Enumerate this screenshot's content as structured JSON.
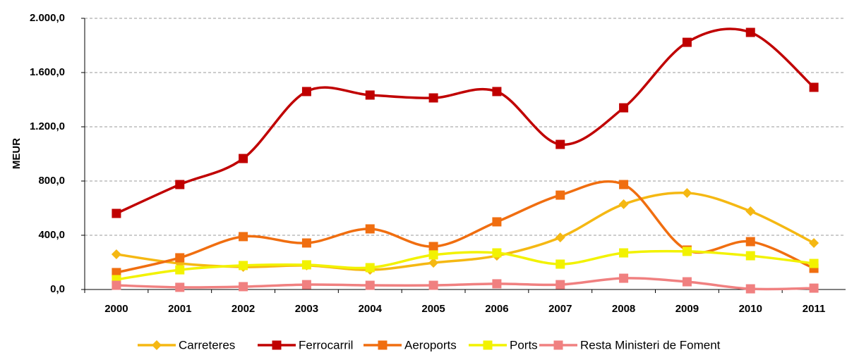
{
  "chart_data": {
    "type": "line",
    "y_label": "MEUR",
    "categories": [
      "2000",
      "2001",
      "2002",
      "2003",
      "2004",
      "2005",
      "2006",
      "2007",
      "2008",
      "2009",
      "2010",
      "2011"
    ],
    "series": [
      {
        "name": "Carreteres",
        "color": "#f5b813",
        "marker": "diamond",
        "values": [
          260,
          192,
          166,
          177,
          145,
          197,
          249,
          384,
          629,
          712,
          577,
          343
        ]
      },
      {
        "name": "Ferrocarril",
        "color": "#c00000",
        "marker": "square",
        "values": [
          561,
          774,
          966,
          1460,
          1434,
          1413,
          1460,
          1070,
          1340,
          1823,
          1896,
          1491
        ]
      },
      {
        "name": "Aeroports",
        "color": "#f06e10",
        "marker": "square",
        "values": [
          125,
          234,
          390,
          343,
          447,
          317,
          499,
          696,
          774,
          291,
          353,
          156
        ]
      },
      {
        "name": "Ports",
        "color": "#f2f200",
        "marker": "square",
        "values": [
          73,
          145,
          177,
          182,
          161,
          255,
          270,
          187,
          270,
          281,
          249,
          192
        ]
      },
      {
        "name": "Resta Ministeri de Foment",
        "color": "#f08080",
        "marker": "square",
        "values": [
          31,
          16,
          21,
          36,
          31,
          31,
          42,
          36,
          83,
          57,
          5,
          10
        ]
      }
    ],
    "ylim": [
      0,
      2000
    ],
    "yticks": [
      {
        "value": 0,
        "label": "0,0"
      },
      {
        "value": 400,
        "label": "400,0"
      },
      {
        "value": 800,
        "label": "800,0"
      },
      {
        "value": 1200,
        "label": "1.200,0"
      },
      {
        "value": 1600,
        "label": "1.600,0"
      },
      {
        "value": 2000,
        "label": "2.000,0"
      }
    ],
    "grid": true,
    "smooth": true,
    "legend": "bottom"
  }
}
